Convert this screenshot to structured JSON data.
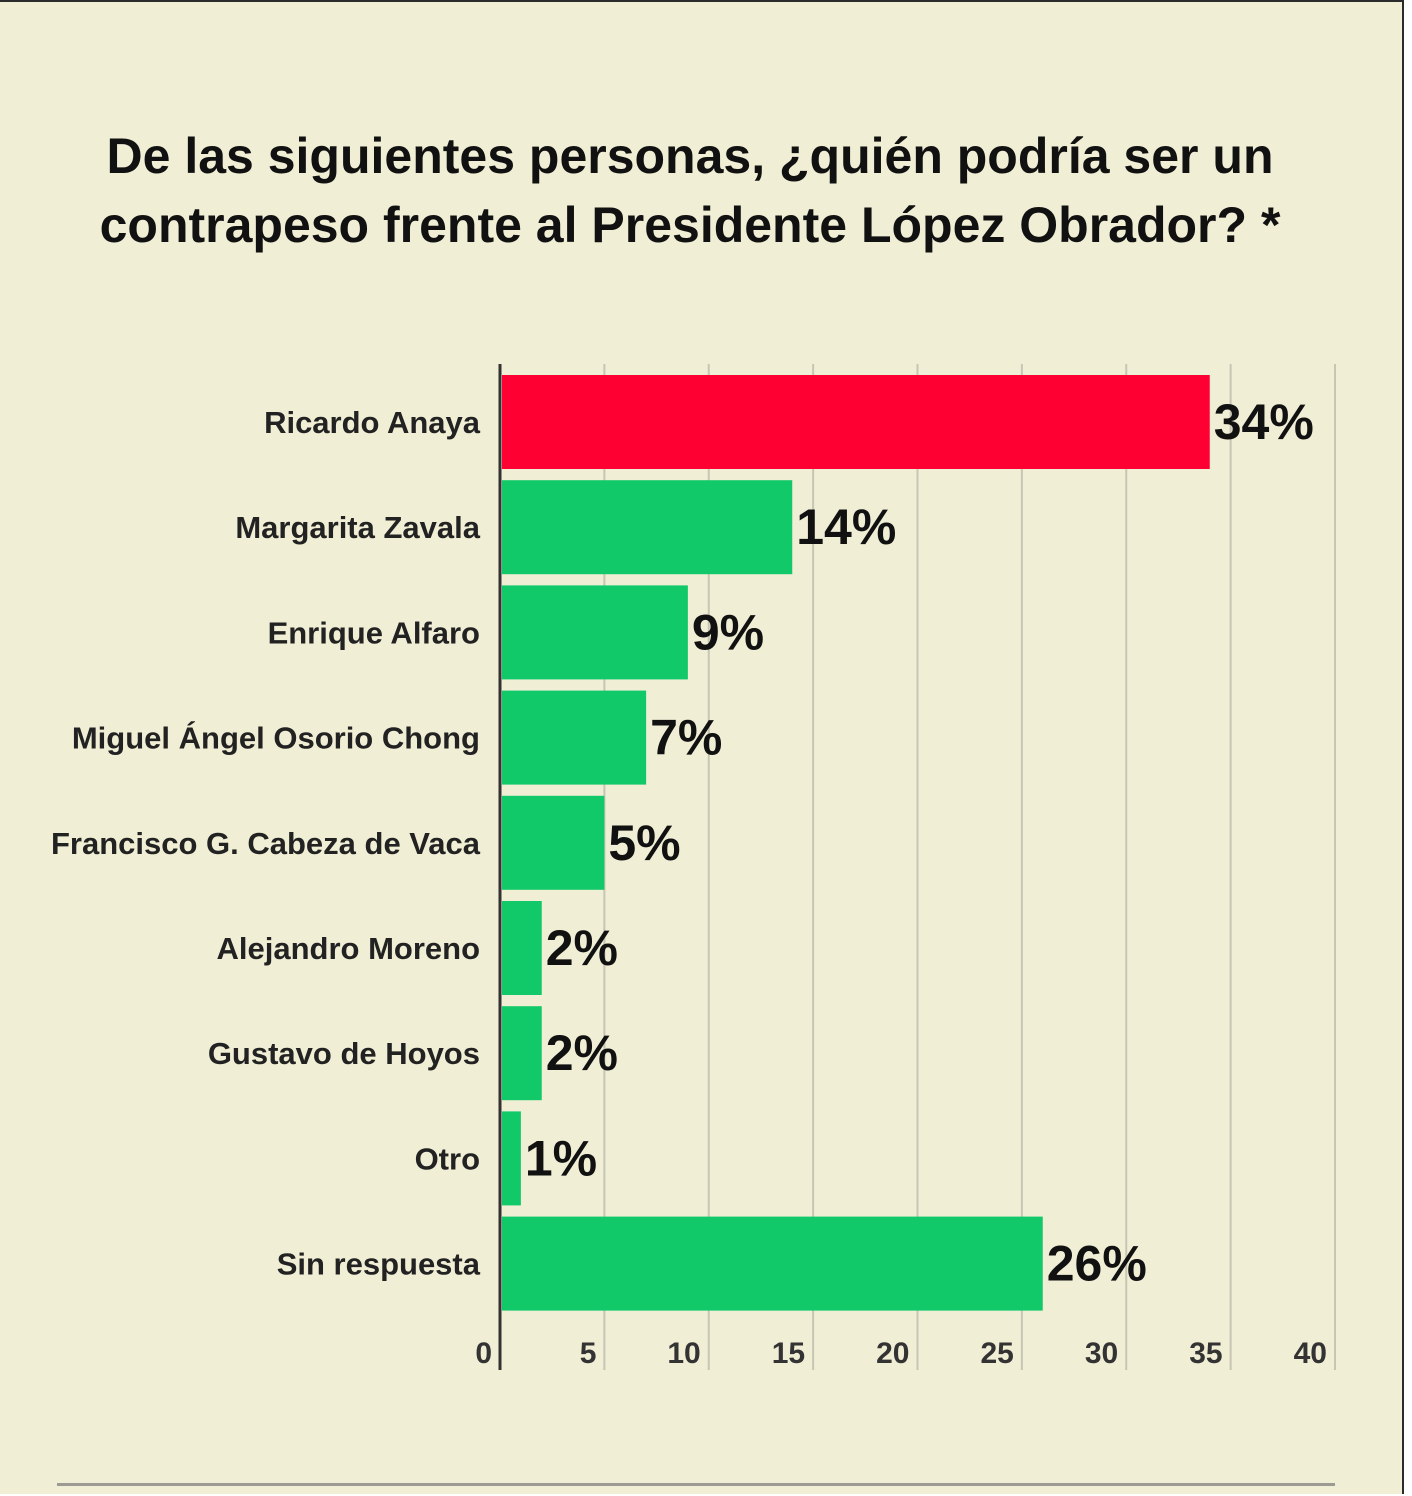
{
  "title": "De las siguientes personas, ¿quién podría ser un contrapeso frente al Presidente López Obrador? *",
  "colors": {
    "background": "#f0eed4",
    "highlight_bar": "#ff0033",
    "bar": "#12c96a",
    "gridline": "#c7c5b4",
    "axis": "#333333",
    "text": "#111111"
  },
  "chart_data": {
    "type": "bar",
    "orientation": "horizontal",
    "title": "De las siguientes personas, ¿quién podría ser un contrapeso frente al Presidente López Obrador? *",
    "xlabel": "",
    "ylabel": "",
    "xlim": [
      0,
      40
    ],
    "xticks": [
      0,
      5,
      10,
      15,
      20,
      25,
      30,
      35,
      40
    ],
    "grid": true,
    "categories": [
      "Ricardo Anaya",
      "Margarita Zavala",
      "Enrique Alfaro",
      "Miguel Ángel Osorio Chong",
      "Francisco G. Cabeza de Vaca",
      "Alejandro Moreno",
      "Gustavo de Hoyos",
      "Otro",
      "Sin respuesta"
    ],
    "values": [
      34,
      14,
      9,
      7,
      5,
      2,
      2,
      1,
      26
    ],
    "value_labels": [
      "34%",
      "14%",
      "9%",
      "7%",
      "5%",
      "2%",
      "2%",
      "1%",
      "26%"
    ],
    "highlighted": [
      "Ricardo Anaya"
    ]
  }
}
